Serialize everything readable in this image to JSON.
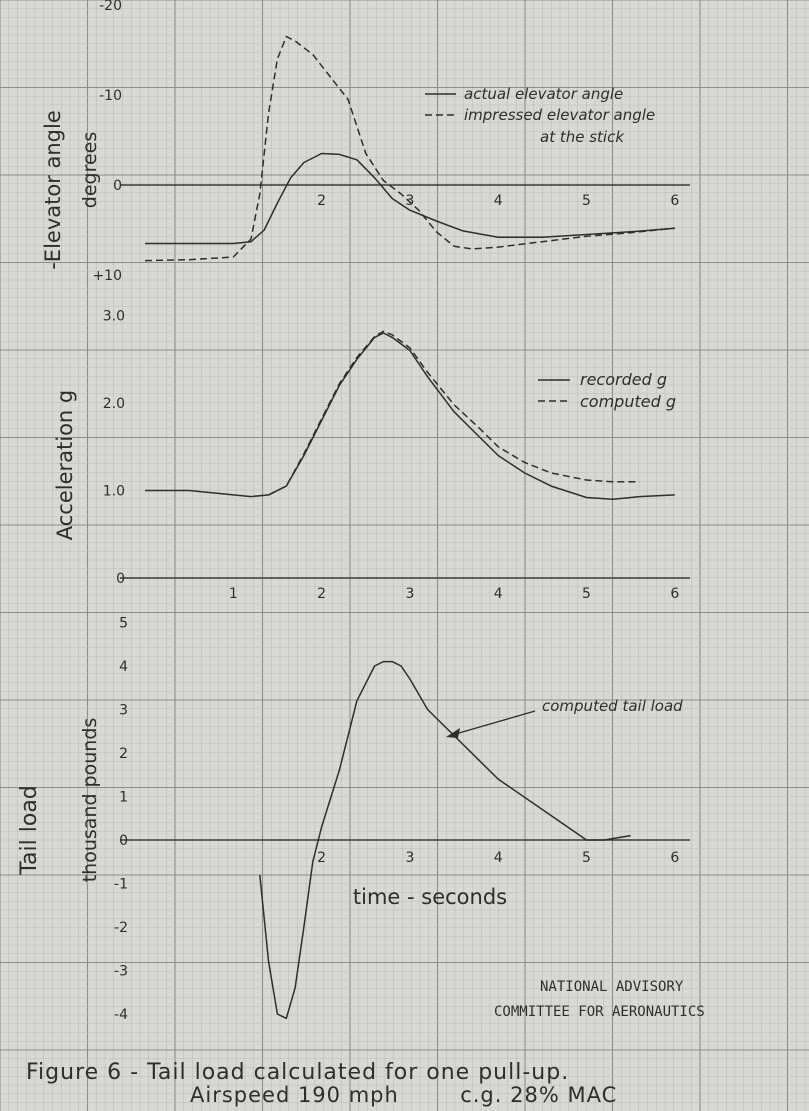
{
  "chart_data": [
    {
      "type": "line",
      "ylabel": "Elevator angle degrees",
      "ylabel_lines": [
        "-Elevator angle",
        "degrees"
      ],
      "ytick_labels": [
        "-20",
        "-10",
        "0",
        "+10"
      ],
      "xtick_labels": [
        "2",
        "3",
        "4",
        "5",
        "6"
      ],
      "x_unit": "seconds",
      "ylim": [
        -20,
        10
      ],
      "legend": [
        "actual elevator angle",
        "impressed elevator angle",
        "at the stick"
      ],
      "series": [
        {
          "name": "actual elevator angle",
          "style": "solid",
          "x": [
            0.0,
            0.5,
            1.0,
            1.2,
            1.35,
            1.5,
            1.65,
            1.8,
            2.0,
            2.2,
            2.4,
            2.6,
            2.8,
            3.0,
            3.3,
            3.6,
            4.0,
            4.5,
            5.0,
            5.5,
            6.0
          ],
          "y": [
            6.5,
            6.5,
            6.5,
            6.3,
            5.0,
            2.0,
            -0.8,
            -2.5,
            -3.5,
            -3.4,
            -2.8,
            -0.8,
            1.5,
            2.8,
            4.0,
            5.1,
            5.8,
            5.8,
            5.5,
            5.2,
            4.8
          ]
        },
        {
          "name": "impressed elevator angle at the stick",
          "style": "dashed",
          "x": [
            0.0,
            0.5,
            1.0,
            1.2,
            1.3,
            1.4,
            1.5,
            1.6,
            1.7,
            1.9,
            2.1,
            2.3,
            2.5,
            2.7,
            2.9,
            3.1,
            3.3,
            3.5,
            3.7,
            4.0,
            4.5,
            5.0,
            5.5,
            6.0
          ],
          "y": [
            8.4,
            8.3,
            8.0,
            6.0,
            1.0,
            -8.0,
            -14.0,
            -16.5,
            -16.0,
            -14.5,
            -12.0,
            -9.5,
            -3.5,
            -0.5,
            1.0,
            2.8,
            5.2,
            6.8,
            7.1,
            6.9,
            6.3,
            5.7,
            5.3,
            4.8
          ]
        }
      ]
    },
    {
      "type": "line",
      "ylabel": "Acceleration g",
      "ytick_labels": [
        "3.0",
        "2.0",
        "1.0",
        "0"
      ],
      "xtick_labels": [
        "1",
        "2",
        "3",
        "4",
        "5",
        "6"
      ],
      "ylim": [
        0,
        3.0
      ],
      "legend": [
        "recorded g",
        "computed g"
      ],
      "series": [
        {
          "name": "recorded g",
          "style": "solid",
          "x": [
            0.0,
            0.5,
            1.0,
            1.2,
            1.4,
            1.6,
            1.8,
            2.0,
            2.2,
            2.4,
            2.6,
            2.7,
            2.8,
            3.0,
            3.2,
            3.5,
            3.8,
            4.0,
            4.3,
            4.6,
            5.0,
            5.3,
            5.6,
            6.0
          ],
          "y": [
            1.0,
            1.0,
            0.95,
            0.93,
            0.95,
            1.05,
            1.4,
            1.8,
            2.2,
            2.5,
            2.75,
            2.8,
            2.75,
            2.6,
            2.3,
            1.9,
            1.6,
            1.4,
            1.2,
            1.05,
            0.92,
            0.9,
            0.93,
            0.95
          ]
        },
        {
          "name": "computed g",
          "style": "dashed",
          "x": [
            1.4,
            1.6,
            1.8,
            2.0,
            2.2,
            2.4,
            2.6,
            2.7,
            2.8,
            3.0,
            3.2,
            3.5,
            3.8,
            4.0,
            4.3,
            4.6,
            5.0,
            5.3,
            5.6
          ],
          "y": [
            0.95,
            1.05,
            1.42,
            1.82,
            2.22,
            2.52,
            2.76,
            2.82,
            2.78,
            2.63,
            2.35,
            1.98,
            1.7,
            1.5,
            1.32,
            1.2,
            1.12,
            1.1,
            1.1
          ]
        }
      ]
    },
    {
      "type": "line",
      "ylabel": "Tail load thousand pounds",
      "ylabel_lines": [
        "Tail load",
        "thousand pounds"
      ],
      "ytick_labels": [
        "5",
        "4",
        "3",
        "2",
        "1",
        "0",
        "-1",
        "-2",
        "-3",
        "-4"
      ],
      "xtick_labels": [
        "2",
        "3",
        "4",
        "5",
        "6"
      ],
      "xlabel": "time - seconds",
      "ylim": [
        -4.3,
        5
      ],
      "annotation": "computed tail load",
      "series": [
        {
          "name": "computed tail load",
          "style": "solid",
          "x": [
            1.3,
            1.4,
            1.5,
            1.6,
            1.7,
            1.8,
            1.9,
            2.0,
            2.2,
            2.4,
            2.6,
            2.7,
            2.8,
            2.9,
            3.0,
            3.2,
            3.5,
            3.8,
            4.0,
            4.5,
            5.0,
            5.2,
            5.5
          ],
          "y": [
            -0.8,
            -2.8,
            -4.0,
            -4.1,
            -3.4,
            -2.0,
            -0.5,
            0.3,
            1.6,
            3.2,
            4.0,
            4.1,
            4.1,
            4.0,
            3.7,
            3.0,
            2.4,
            1.8,
            1.4,
            0.7,
            0.0,
            0.0,
            0.1
          ]
        }
      ]
    }
  ],
  "footer": {
    "org_line1": "NATIONAL ADVISORY",
    "org_line2": "COMMITTEE FOR AERONAUTICS",
    "caption_line1": "Figure 6 - Tail load calculated for one pull-up.",
    "caption_line2": "Airspeed 190 mph        c.g. 28% MAC"
  },
  "colors": {
    "paper": "#d8d8d4",
    "grid_minor": "#bdbdb8",
    "grid_major": "#8e8e88",
    "ink": "#2e2e2e"
  }
}
